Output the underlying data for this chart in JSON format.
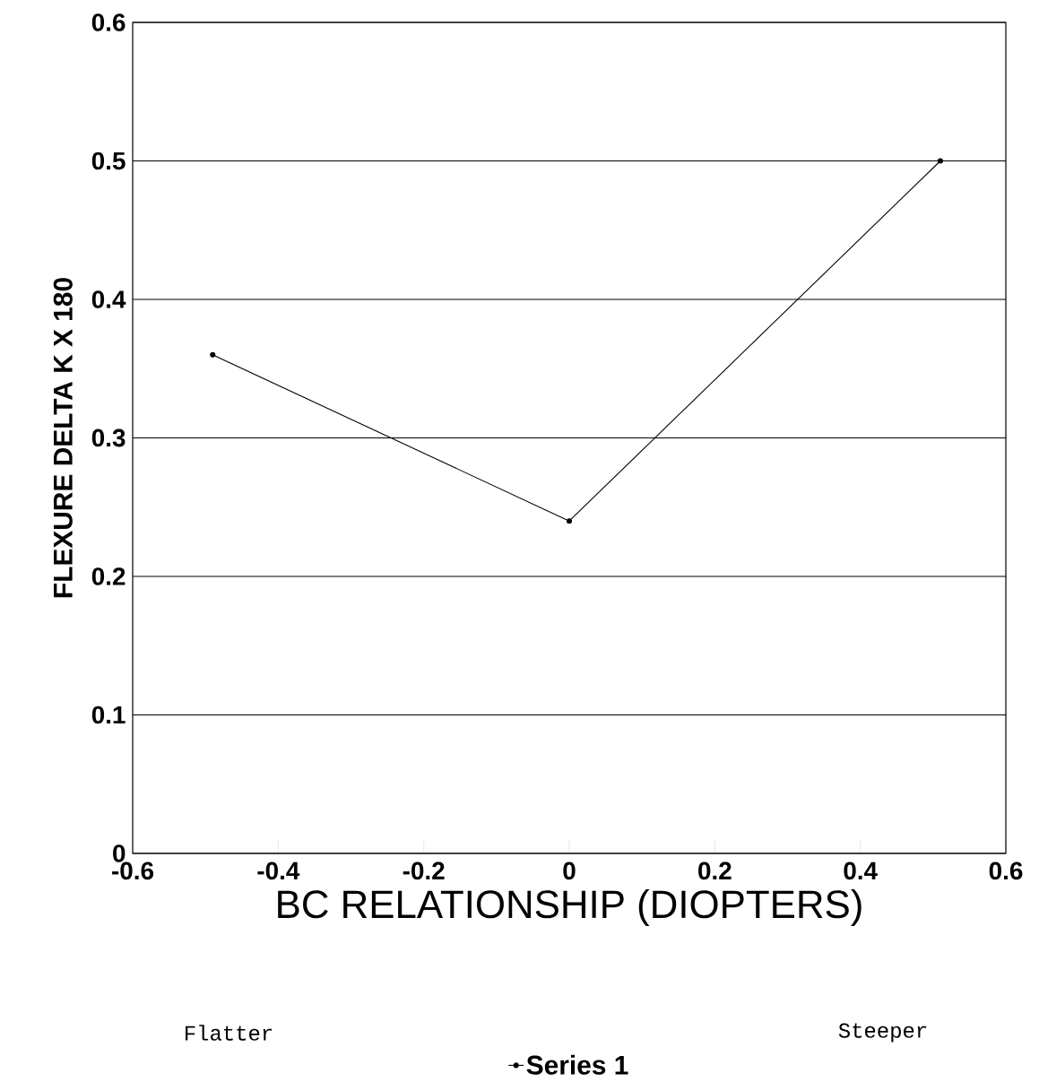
{
  "chart_data": {
    "type": "line",
    "xlabel": "BC RELATIONSHIP (DIOPTERS)",
    "ylabel": "FLEXURE DELTA K X 180",
    "x": [
      -0.49,
      0,
      0.51
    ],
    "series": [
      {
        "name": "Series 1",
        "color": "#000000",
        "values": [
          0.36,
          0.24,
          0.5
        ]
      }
    ],
    "xlim": [
      -0.6,
      0.6
    ],
    "xticks": [
      -0.6,
      -0.4,
      -0.2,
      0,
      0.2,
      0.4,
      0.6
    ],
    "ylim": [
      0,
      0.6
    ],
    "yticks": [
      0,
      0.1,
      0.2,
      0.3,
      0.4,
      0.5,
      0.6
    ],
    "grid": "y",
    "legend": "bottom",
    "marker": "circle",
    "line_style": "solid",
    "annotations": [
      "Flatter",
      "Steeper"
    ]
  }
}
